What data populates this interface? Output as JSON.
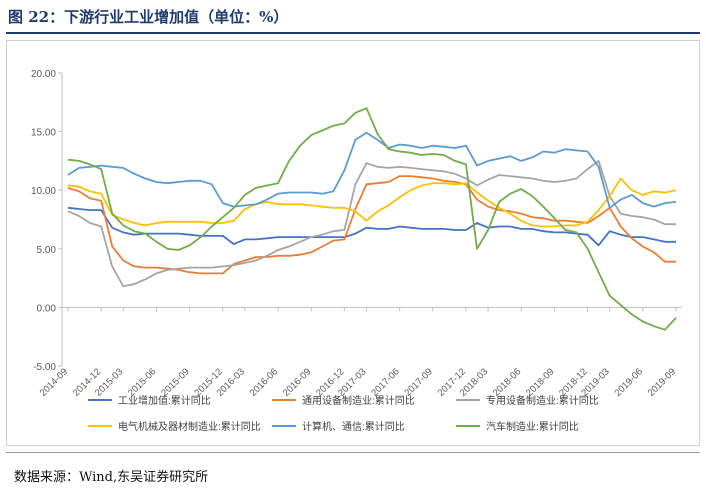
{
  "header": {
    "title": "图 22：下游行业工业增加值（单位：%）"
  },
  "footer": {
    "source": "数据来源：Wind,东吴证券研究所"
  },
  "chart_data": {
    "type": "line",
    "title": "",
    "xlabel": "",
    "ylabel": "",
    "ylim": [
      -5,
      20
    ],
    "yticks": [
      "20.00",
      "15.00",
      "10.00",
      "5.00",
      "0.00",
      "-5.00"
    ],
    "grid": false,
    "legend_position": "bottom",
    "x": [
      "2014-09",
      "2014-10",
      "2014-11",
      "2014-12",
      "2015-02",
      "2015-03",
      "2015-04",
      "2015-05",
      "2015-06",
      "2015-07",
      "2015-08",
      "2015-09",
      "2015-10",
      "2015-11",
      "2015-12",
      "2016-02",
      "2016-03",
      "2016-04",
      "2016-05",
      "2016-06",
      "2016-07",
      "2016-08",
      "2016-09",
      "2016-10",
      "2016-11",
      "2016-12",
      "2017-02",
      "2017-03",
      "2017-04",
      "2017-05",
      "2017-06",
      "2017-07",
      "2017-08",
      "2017-09",
      "2017-10",
      "2017-11",
      "2017-12",
      "2018-02",
      "2018-03",
      "2018-04",
      "2018-05",
      "2018-06",
      "2018-07",
      "2018-08",
      "2018-09",
      "2018-10",
      "2018-11",
      "2018-12",
      "2019-02",
      "2019-03",
      "2019-04",
      "2019-05",
      "2019-06",
      "2019-07",
      "2019-08",
      "2019-09"
    ],
    "xtick_labels": [
      "2014-09",
      "2014-12",
      "2015-03",
      "2015-06",
      "2015-09",
      "2015-12",
      "2016-03",
      "2016-06",
      "2016-09",
      "2016-12",
      "2017-03",
      "2017-06",
      "2017-09",
      "2017-12",
      "2018-03",
      "2018-06",
      "2018-09",
      "2018-12",
      "2019-03",
      "2019-06",
      "2019-09"
    ],
    "series": [
      {
        "name": "工业增加值:累计同比",
        "color": "#4472c4",
        "values": [
          8.5,
          8.4,
          8.3,
          8.3,
          6.8,
          6.4,
          6.2,
          6.3,
          6.3,
          6.3,
          6.3,
          6.2,
          6.1,
          6.1,
          6.1,
          5.4,
          5.8,
          5.8,
          5.9,
          6.0,
          6.0,
          6.0,
          6.0,
          6.0,
          6.0,
          6.0,
          6.3,
          6.8,
          6.7,
          6.7,
          6.9,
          6.8,
          6.7,
          6.7,
          6.7,
          6.6,
          6.6,
          7.2,
          6.8,
          6.9,
          6.9,
          6.7,
          6.7,
          6.5,
          6.4,
          6.4,
          6.3,
          6.2,
          5.3,
          6.5,
          6.2,
          6.0,
          6.0,
          5.8,
          5.6,
          5.6
        ]
      },
      {
        "name": "通用设备制造业:累计同比",
        "color": "#ed7d31",
        "values": [
          10.2,
          9.9,
          9.3,
          9.1,
          5.2,
          4.0,
          3.5,
          3.4,
          3.4,
          3.3,
          3.2,
          3.0,
          2.9,
          2.9,
          2.9,
          3.7,
          4.0,
          4.3,
          4.3,
          4.4,
          4.4,
          4.5,
          4.7,
          5.2,
          5.7,
          5.8,
          8.4,
          10.5,
          10.6,
          10.7,
          11.2,
          11.2,
          11.1,
          11.0,
          10.8,
          10.7,
          10.5,
          9.2,
          8.6,
          8.3,
          8.2,
          8.0,
          7.7,
          7.6,
          7.4,
          7.4,
          7.3,
          7.2,
          7.8,
          8.5,
          6.9,
          5.9,
          5.2,
          4.7,
          3.9,
          3.9
        ]
      },
      {
        "name": "专用设备制造业:累计同比",
        "color": "#a5a5a5",
        "values": [
          8.2,
          7.8,
          7.2,
          6.9,
          3.5,
          1.8,
          2.0,
          2.4,
          2.9,
          3.2,
          3.3,
          3.4,
          3.4,
          3.4,
          3.5,
          3.6,
          3.8,
          4.0,
          4.4,
          4.9,
          5.2,
          5.6,
          6.0,
          6.2,
          6.5,
          6.6,
          10.5,
          12.3,
          12.0,
          11.9,
          12.0,
          11.9,
          11.8,
          11.7,
          11.6,
          11.4,
          11.0,
          10.4,
          10.9,
          11.3,
          11.2,
          11.1,
          11.0,
          10.8,
          10.7,
          10.8,
          11.0,
          11.8,
          12.5,
          9.5,
          8.0,
          7.8,
          7.7,
          7.5,
          7.1,
          7.1
        ]
      },
      {
        "name": "电气机械及器材制造业:累计同比",
        "color": "#ffc000",
        "values": [
          10.4,
          10.3,
          9.9,
          9.7,
          7.9,
          7.5,
          7.2,
          7.0,
          7.2,
          7.3,
          7.3,
          7.3,
          7.3,
          7.2,
          7.2,
          7.4,
          8.4,
          8.8,
          9.0,
          8.8,
          8.8,
          8.8,
          8.7,
          8.6,
          8.5,
          8.5,
          8.2,
          7.4,
          8.2,
          8.7,
          9.4,
          10.0,
          10.4,
          10.6,
          10.6,
          10.5,
          10.6,
          9.8,
          9.1,
          8.5,
          8.0,
          7.4,
          7.0,
          6.9,
          6.9,
          7.0,
          7.0,
          7.3,
          8.3,
          9.5,
          11.0,
          10.0,
          9.6,
          9.9,
          9.8,
          10.0
        ]
      },
      {
        "name": "计算机、通信:累计同比",
        "color": "#5b9bd5",
        "values": [
          11.3,
          11.9,
          12.0,
          12.1,
          12.0,
          11.9,
          11.4,
          11.0,
          10.7,
          10.6,
          10.7,
          10.8,
          10.8,
          10.5,
          8.9,
          8.6,
          8.7,
          8.8,
          9.2,
          9.7,
          9.8,
          9.8,
          9.8,
          9.7,
          9.9,
          11.7,
          14.3,
          14.9,
          14.3,
          13.6,
          13.9,
          13.8,
          13.6,
          13.8,
          13.7,
          13.6,
          13.8,
          12.1,
          12.5,
          12.7,
          12.9,
          12.5,
          12.8,
          13.3,
          13.2,
          13.5,
          13.4,
          13.3,
          12.0,
          8.5,
          9.2,
          9.6,
          8.9,
          8.6,
          8.9,
          9.0
        ]
      },
      {
        "name": "汽车制造业:累计同比",
        "color": "#70ad47",
        "values": [
          12.6,
          12.5,
          12.2,
          11.8,
          8.0,
          7.0,
          6.5,
          6.3,
          5.6,
          5.0,
          4.9,
          5.3,
          6.0,
          6.9,
          7.7,
          8.5,
          9.6,
          10.2,
          10.4,
          10.6,
          12.5,
          13.8,
          14.7,
          15.1,
          15.5,
          15.7,
          16.6,
          17.0,
          14.8,
          13.5,
          13.3,
          13.2,
          13.0,
          13.1,
          13.0,
          12.5,
          12.2,
          5.0,
          6.6,
          9.0,
          9.7,
          10.1,
          9.5,
          8.6,
          7.6,
          6.6,
          6.4,
          5.0,
          3.0,
          1.0,
          0.2,
          -0.6,
          -1.2,
          -1.6,
          -1.9,
          -0.9
        ]
      }
    ]
  }
}
